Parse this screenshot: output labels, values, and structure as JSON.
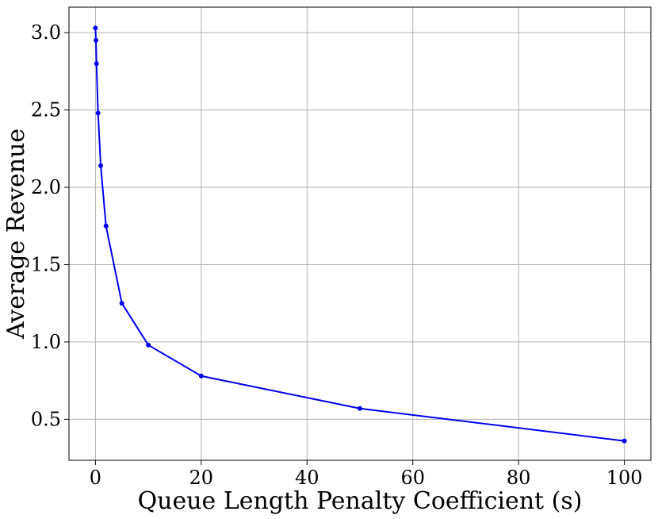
{
  "chart_data": {
    "type": "line",
    "title": "",
    "xlabel": "Queue Length Penalty Coefficient (s)",
    "ylabel": "Average Revenue",
    "xlim": [
      -5,
      105
    ],
    "ylim": [
      0.235,
      3.165
    ],
    "xticks": [
      0,
      20,
      40,
      60,
      80,
      100
    ],
    "yticks": [
      0.5,
      1.0,
      1.5,
      2.0,
      2.5,
      3.0
    ],
    "xtick_labels": [
      "0",
      "20",
      "40",
      "60",
      "80",
      "100"
    ],
    "ytick_labels": [
      "0.5",
      "1.0",
      "1.5",
      "2.0",
      "2.5",
      "3.0"
    ],
    "grid": true,
    "series": [
      {
        "color": "#0000ee",
        "x": [
          0,
          0.1,
          0.2,
          0.5,
          1,
          2,
          5,
          10,
          20,
          50,
          100
        ],
        "y": [
          3.03,
          2.95,
          2.8,
          2.48,
          2.14,
          1.75,
          1.25,
          0.98,
          0.78,
          0.57,
          0.36
        ]
      }
    ]
  }
}
